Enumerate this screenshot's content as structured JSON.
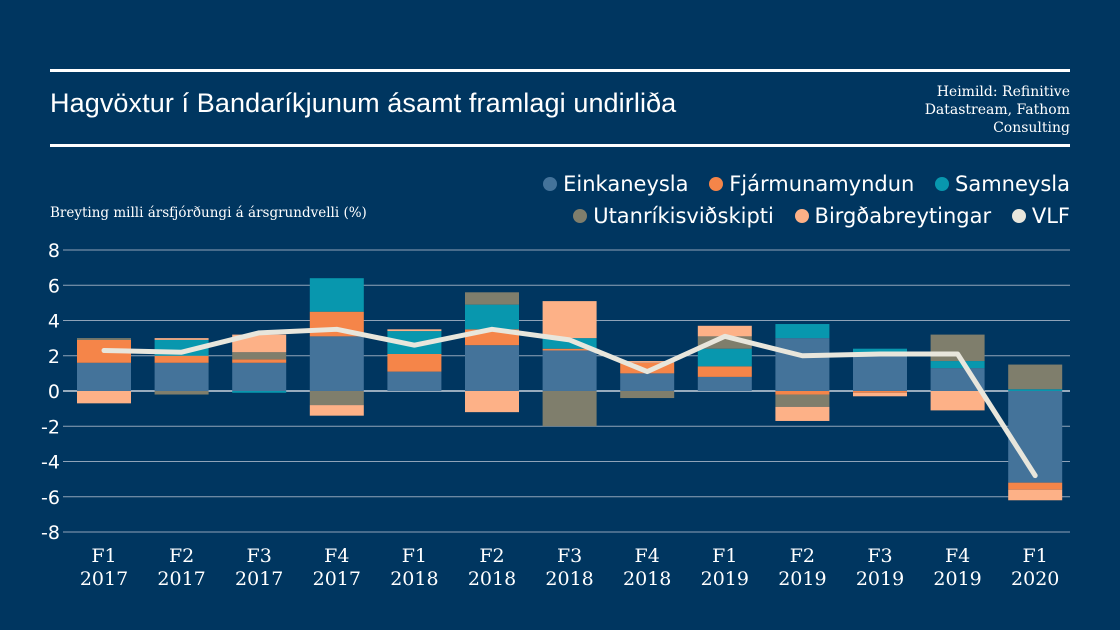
{
  "chart_data": {
    "type": "bar",
    "stacked": true,
    "title": "Hagvöxtur í Bandaríkjunum ásamt framlagi undirliða",
    "source": [
      "Heimild: Refinitive",
      "Datastream, Fathom",
      "Consulting"
    ],
    "ylabel": "Breyting milli ársfjórðungi á ársgrundvelli (%)",
    "xlabel": "",
    "ylim": [
      -8,
      8
    ],
    "yticks": [
      8,
      6,
      4,
      2,
      0,
      -2,
      -4,
      -6,
      -8
    ],
    "grid": true,
    "legend_position": "top-right",
    "categories": [
      [
        "F1",
        "2017"
      ],
      [
        "F2",
        "2017"
      ],
      [
        "F3",
        "2017"
      ],
      [
        "F4",
        "2017"
      ],
      [
        "F1",
        "2018"
      ],
      [
        "F2",
        "2018"
      ],
      [
        "F3",
        "2018"
      ],
      [
        "F4",
        "2018"
      ],
      [
        "F1",
        "2019"
      ],
      [
        "F2",
        "2019"
      ],
      [
        "F3",
        "2019"
      ],
      [
        "F4",
        "2019"
      ],
      [
        "F1",
        "2020"
      ]
    ],
    "series": [
      {
        "name": "Einkaneysla",
        "color": "#44739a",
        "values": [
          1.6,
          1.6,
          1.6,
          3.1,
          1.1,
          2.6,
          2.3,
          1.0,
          0.8,
          3.0,
          2.2,
          1.3,
          -5.2
        ]
      },
      {
        "name": "Fjármunamyndun",
        "color": "#f58549",
        "values": [
          1.3,
          0.4,
          0.2,
          1.4,
          1.0,
          0.9,
          0.1,
          0.6,
          0.6,
          -0.2,
          -0.1,
          0.0,
          -0.4
        ]
      },
      {
        "name": "Samneysla",
        "color": "#0897ae",
        "values": [
          0.0,
          0.9,
          -0.1,
          1.9,
          1.3,
          1.4,
          0.6,
          0.0,
          1.0,
          0.8,
          0.2,
          0.4,
          0.1
        ]
      },
      {
        "name": "Utanríkisviðskipti",
        "color": "#7f7e6c",
        "values": [
          0.1,
          -0.2,
          0.4,
          -0.8,
          0.0,
          0.7,
          -2.0,
          -0.4,
          0.7,
          -0.7,
          0.0,
          1.5,
          1.4
        ]
      },
      {
        "name": "Birgðabreytingar",
        "color": "#fdb187",
        "values": [
          -0.7,
          0.1,
          1.0,
          -0.6,
          0.1,
          -1.2,
          2.1,
          0.1,
          0.6,
          -0.8,
          -0.2,
          -1.1,
          -0.6
        ]
      }
    ],
    "line": {
      "name": "VLF",
      "color": "#e8e6dc",
      "values": [
        2.3,
        2.2,
        3.3,
        3.5,
        2.6,
        3.5,
        2.9,
        1.1,
        3.1,
        2.0,
        2.1,
        2.1,
        -4.8
      ]
    }
  }
}
